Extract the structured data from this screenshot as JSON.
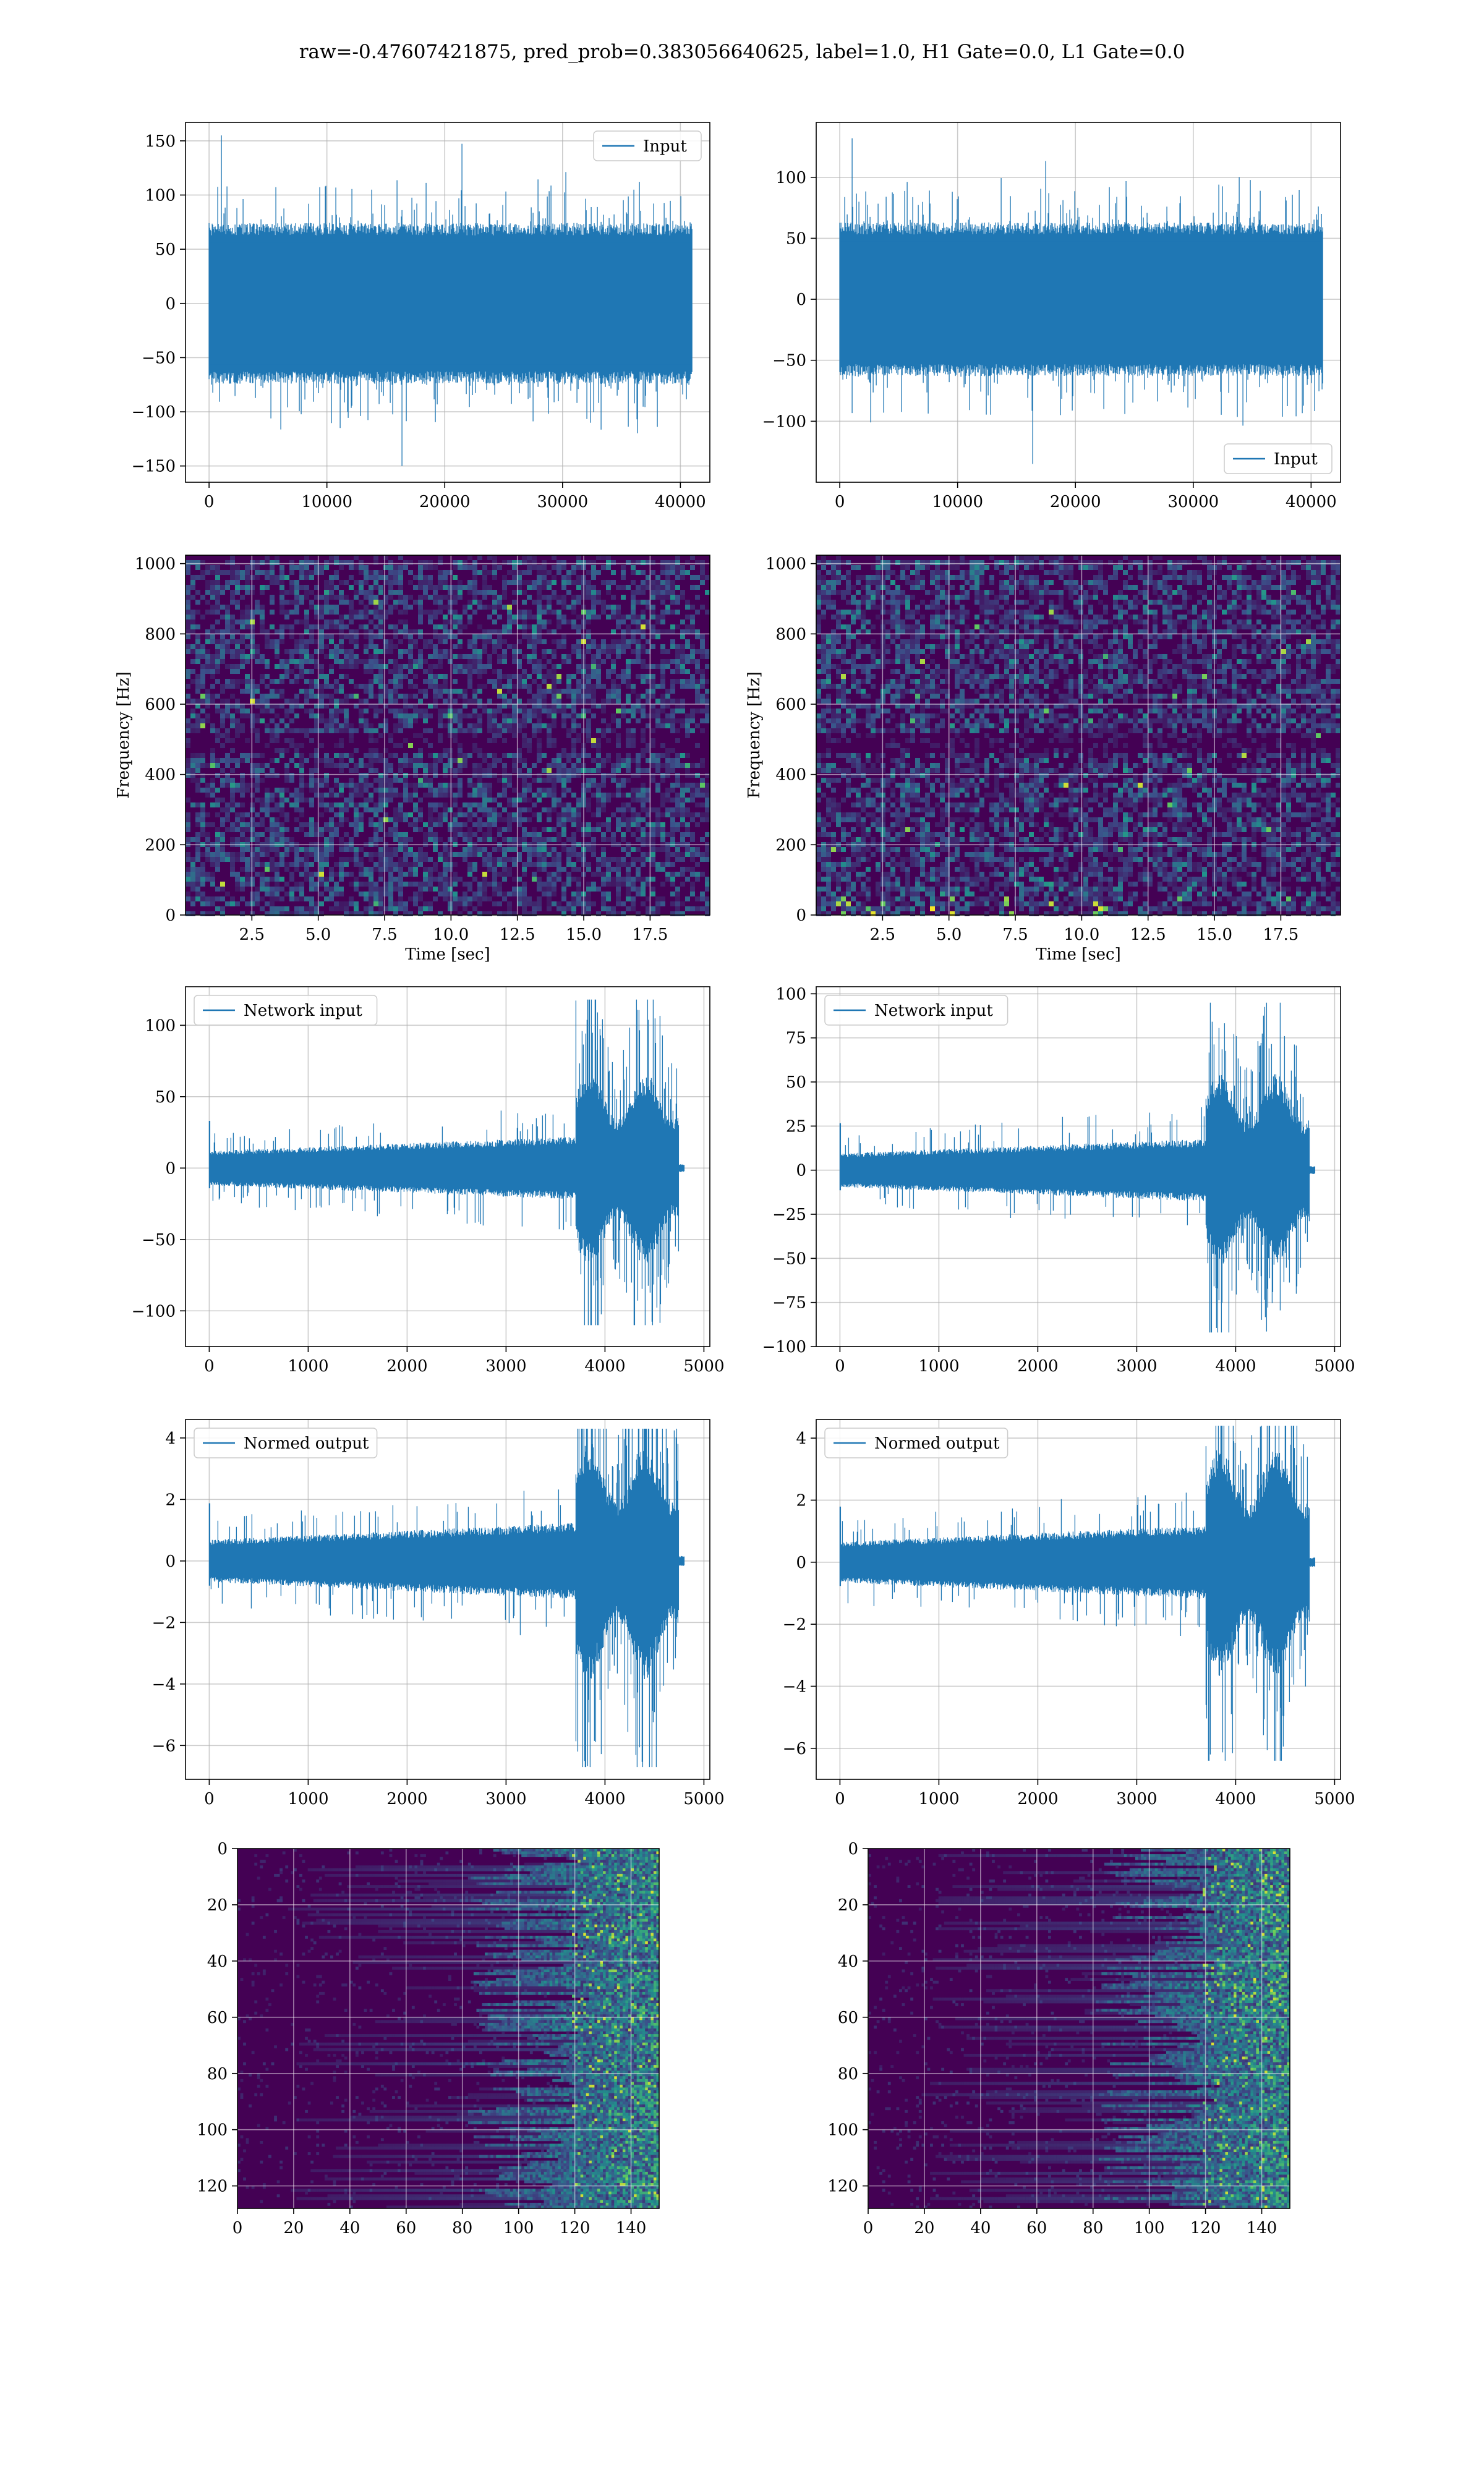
{
  "figure_title": "raw=-0.47607421875, pred_prob=0.383056640625, label=1.0, H1 Gate=0.0, L1 Gate=0.0",
  "colors": {
    "line": "#1f77b4",
    "grid": "#b0b0b0",
    "viridis_dark": "#440154",
    "viridis_bright": "#fde725"
  },
  "chart_data": [
    {
      "id": "h1-input",
      "type": "line",
      "title": "",
      "xlabel": "",
      "ylabel": "",
      "xlim": [
        -2000,
        42500
      ],
      "ylim": [
        -165,
        167
      ],
      "xticks": [
        0,
        10000,
        20000,
        30000,
        40000
      ],
      "yticks": [
        -150,
        -100,
        -50,
        0,
        50,
        100,
        150
      ],
      "series": [
        {
          "name": "Input",
          "n_samples": 40960,
          "envelope_min": -150,
          "envelope_max": 155,
          "noise_sigma": 33
        }
      ],
      "legend": "upper right",
      "grid": true
    },
    {
      "id": "l1-input",
      "type": "line",
      "title": "",
      "xlabel": "",
      "ylabel": "",
      "xlim": [
        -2000,
        42500
      ],
      "ylim": [
        -150,
        145
      ],
      "xticks": [
        0,
        10000,
        20000,
        30000,
        40000
      ],
      "yticks": [
        -100,
        -50,
        0,
        50,
        100
      ],
      "series": [
        {
          "name": "Input",
          "n_samples": 40960,
          "envelope_min": -135,
          "envelope_max": 132,
          "noise_sigma": 28
        }
      ],
      "legend": "lower right",
      "grid": true
    },
    {
      "id": "h1-spectrogram",
      "type": "heatmap",
      "title": "",
      "xlabel": "Time [sec]",
      "ylabel": "Frequency [Hz]",
      "xlim": [
        0,
        19.75
      ],
      "ylim": [
        0,
        1024
      ],
      "xticks": [
        2.5,
        5.0,
        7.5,
        10.0,
        12.5,
        15.0,
        17.5
      ],
      "yticks": [
        0,
        200,
        400,
        600,
        800,
        1000
      ],
      "colormap": "viridis",
      "grid": true
    },
    {
      "id": "l1-spectrogram",
      "type": "heatmap",
      "title": "",
      "xlabel": "Time [sec]",
      "ylabel": "Frequency [Hz]",
      "xlim": [
        0,
        19.75
      ],
      "ylim": [
        0,
        1024
      ],
      "xticks": [
        2.5,
        5.0,
        7.5,
        10.0,
        12.5,
        15.0,
        17.5
      ],
      "yticks": [
        0,
        200,
        400,
        600,
        800,
        1000
      ],
      "colormap": "viridis",
      "grid": true
    },
    {
      "id": "h1-network-input",
      "type": "line",
      "title": "",
      "xlabel": "",
      "ylabel": "",
      "xlim": [
        -240,
        5060
      ],
      "ylim": [
        -125,
        127
      ],
      "xticks": [
        0,
        1000,
        2000,
        3000,
        4000,
        5000
      ],
      "yticks": [
        -100,
        -50,
        0,
        50,
        100
      ],
      "series": [
        {
          "name": "Network input",
          "n_samples": 4800,
          "burst_start": 3700,
          "signal_end": 4750,
          "envelope_min": -110,
          "envelope_max": 118
        }
      ],
      "legend": "upper left",
      "grid": true
    },
    {
      "id": "l1-network-input",
      "type": "line",
      "title": "",
      "xlabel": "",
      "ylabel": "",
      "xlim": [
        -240,
        5060
      ],
      "ylim": [
        -100,
        104
      ],
      "xticks": [
        0,
        1000,
        2000,
        3000,
        4000,
        5000
      ],
      "yticks": [
        -100,
        -75,
        -50,
        -25,
        0,
        25,
        50,
        75,
        100
      ],
      "series": [
        {
          "name": "Network input",
          "n_samples": 4800,
          "burst_start": 3700,
          "signal_end": 4750,
          "envelope_min": -92,
          "envelope_max": 95
        }
      ],
      "legend": "upper left",
      "grid": true
    },
    {
      "id": "h1-normed-output",
      "type": "line",
      "title": "",
      "xlabel": "",
      "ylabel": "",
      "xlim": [
        -240,
        5060
      ],
      "ylim": [
        -7.1,
        4.6
      ],
      "xticks": [
        0,
        1000,
        2000,
        3000,
        4000,
        5000
      ],
      "yticks": [
        -6,
        -4,
        -2,
        0,
        2,
        4
      ],
      "series": [
        {
          "name": "Normed output",
          "n_samples": 4800,
          "burst_start": 3700,
          "signal_end": 4750,
          "envelope_min": -6.7,
          "envelope_max": 4.3
        }
      ],
      "legend": "upper left",
      "grid": true
    },
    {
      "id": "l1-normed-output",
      "type": "line",
      "title": "",
      "xlabel": "",
      "ylabel": "",
      "xlim": [
        -240,
        5060
      ],
      "ylim": [
        -7.0,
        4.6
      ],
      "xticks": [
        0,
        1000,
        2000,
        3000,
        4000,
        5000
      ],
      "yticks": [
        -6,
        -4,
        -2,
        0,
        2,
        4
      ],
      "series": [
        {
          "name": "Normed output",
          "n_samples": 4800,
          "burst_start": 3700,
          "signal_end": 4750,
          "envelope_min": -6.4,
          "envelope_max": 4.4
        }
      ],
      "legend": "upper left",
      "grid": true
    },
    {
      "id": "h1-feature-map",
      "type": "heatmap",
      "title": "",
      "xlabel": "",
      "ylabel": "",
      "xlim": [
        0,
        150
      ],
      "ylim": [
        128,
        0
      ],
      "xticks": [
        0,
        20,
        40,
        60,
        80,
        100,
        120,
        140
      ],
      "yticks": [
        0,
        20,
        40,
        60,
        80,
        100,
        120
      ],
      "colormap": "viridis",
      "grid": true
    },
    {
      "id": "l1-feature-map",
      "type": "heatmap",
      "title": "",
      "xlabel": "",
      "ylabel": "",
      "xlim": [
        0,
        150
      ],
      "ylim": [
        128,
        0
      ],
      "xticks": [
        0,
        20,
        40,
        60,
        80,
        100,
        120,
        140
      ],
      "yticks": [
        0,
        20,
        40,
        60,
        80,
        100,
        120
      ],
      "colormap": "viridis",
      "grid": true
    }
  ]
}
